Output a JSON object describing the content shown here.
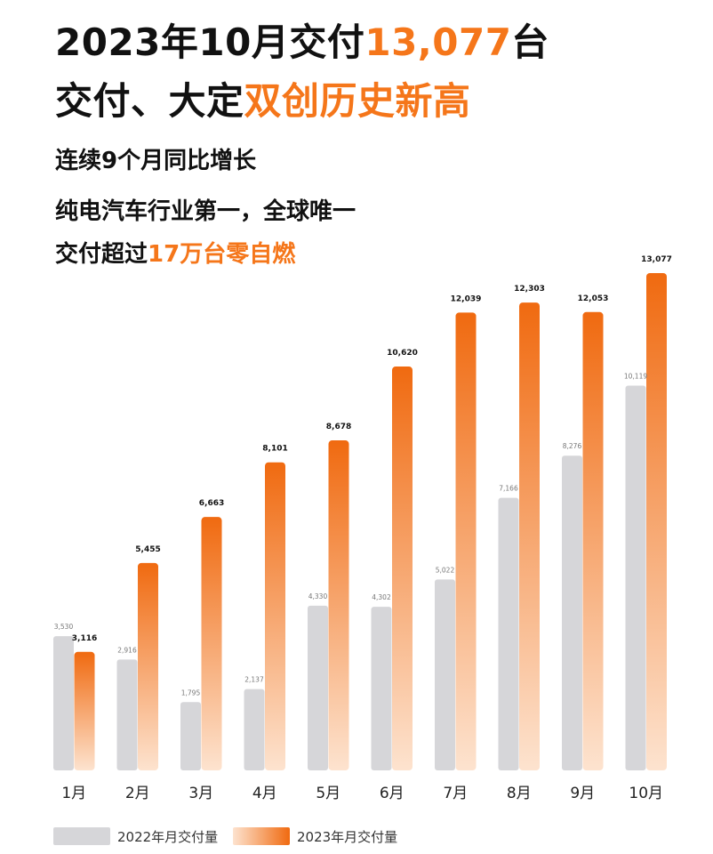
{
  "headline": {
    "line1_prefix": "2023年10月交付",
    "line1_highlight": "13,077",
    "line1_suffix": "台",
    "line2_prefix": "交付、大定",
    "line2_highlight": "双创历史新高"
  },
  "subtitle": {
    "line1": "连续9个月同比增长",
    "line2": "纯电汽车行业第一，全球唯一",
    "line3_prefix": "交付超过",
    "line3_highlight": "17万台零自燃"
  },
  "colors": {
    "accent": "#f5761a",
    "series_2022": "#d6d6d9",
    "series_2023_top": "#f06a10",
    "series_2023_bottom": "#fde3cf"
  },
  "chart_data": {
    "type": "bar",
    "categories": [
      "1月",
      "2月",
      "3月",
      "4月",
      "5月",
      "6月",
      "7月",
      "8月",
      "9月",
      "10月"
    ],
    "series": [
      {
        "name": "2022年月交付量",
        "values": [
          3530,
          2916,
          1795,
          2137,
          4330,
          4302,
          5022,
          7166,
          8276,
          10119
        ],
        "labels": [
          "3,530",
          "2,916",
          "1,795",
          "2,137",
          "4,330",
          "4,302",
          "5,022",
          "7,166",
          "8,276",
          "10,119"
        ]
      },
      {
        "name": "2023年月交付量",
        "values": [
          3116,
          5455,
          6663,
          8101,
          8678,
          10620,
          12039,
          12303,
          12053,
          13077
        ],
        "labels": [
          "3,116",
          "5,455",
          "6,663",
          "8,101",
          "8,678",
          "10,620",
          "12,039",
          "12,303",
          "12,053",
          "13,077"
        ]
      }
    ],
    "ylim": [
      0,
      13077
    ],
    "grid": false,
    "legend_position": "bottom-left"
  }
}
